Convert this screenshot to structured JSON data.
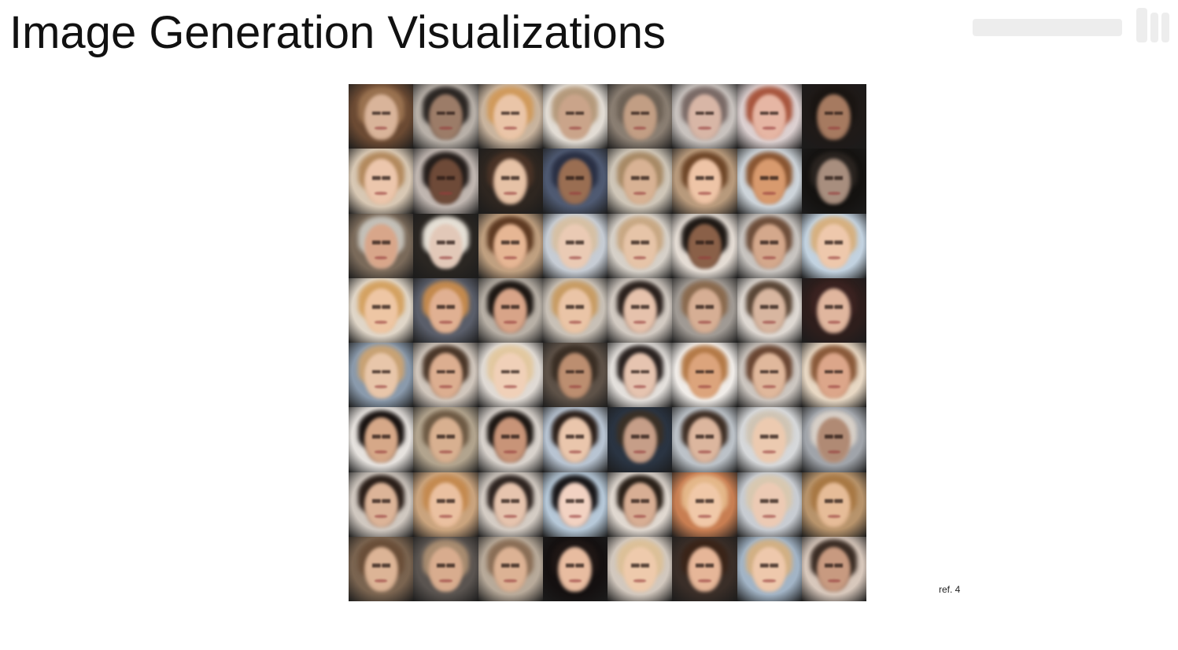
{
  "slide": {
    "title": "Image Generation Visualizations",
    "ref": "ref. 4"
  },
  "grid": {
    "rows": 8,
    "cols": 8,
    "tiles": [
      {
        "bg": "#6b4a33",
        "skin": "#d9b49a",
        "hair": "#9a7250"
      },
      {
        "bg": "#b8b0a8",
        "skin": "#9c7c68",
        "hair": "#2b2623"
      },
      {
        "bg": "#c9b49e",
        "skin": "#eac5a8",
        "hair": "#d09a5c"
      },
      {
        "bg": "#e2dcd4",
        "skin": "#caa48a",
        "hair": "#b59a7c"
      },
      {
        "bg": "#8a7e72",
        "skin": "#c29e84",
        "hair": "#6e6256"
      },
      {
        "bg": "#c8c2be",
        "skin": "#d8b6a6",
        "hair": "#7a6a66"
      },
      {
        "bg": "#dcd0d0",
        "skin": "#e6b6a4",
        "hair": "#a8563e"
      },
      {
        "bg": "#1f1a18",
        "skin": "#a67a60",
        "hair": "#1a1512"
      },
      {
        "bg": "#d8c8b4",
        "skin": "#ecc6ac",
        "hair": "#b38a5e"
      },
      {
        "bg": "#c0b6b0",
        "skin": "#6e4a38",
        "hair": "#241d1a"
      },
      {
        "bg": "#2e2620",
        "skin": "#e6c2a6",
        "hair": "#4a3326"
      },
      {
        "bg": "#4f5a72",
        "skin": "#9a6e52",
        "hair": "#2a3044"
      },
      {
        "bg": "#cfc6b8",
        "skin": "#d8b294",
        "hair": "#a88a66"
      },
      {
        "bg": "#b89a7c",
        "skin": "#eec4a6",
        "hair": "#6e4628"
      },
      {
        "bg": "#cdd4da",
        "skin": "#d89a6e",
        "hair": "#8a5632"
      },
      {
        "bg": "#141210",
        "skin": "#a88e7e",
        "hair": "#2a2420"
      },
      {
        "bg": "#7a6a5a",
        "skin": "#d8a68a",
        "hair": "#c4c0b8"
      },
      {
        "bg": "#2a2622",
        "skin": "#e2c8b8",
        "hair": "#e6e0d6"
      },
      {
        "bg": "#c0a080",
        "skin": "#e6b694",
        "hair": "#5e3a22"
      },
      {
        "bg": "#c6ccd4",
        "skin": "#eacab4",
        "hair": "#d6c0a4"
      },
      {
        "bg": "#d6d0c8",
        "skin": "#e6c4a8",
        "hair": "#c8a884"
      },
      {
        "bg": "#e4dcd4",
        "skin": "#8a6048",
        "hair": "#1e1814"
      },
      {
        "bg": "#c8c4c0",
        "skin": "#d4a88c",
        "hair": "#6e4e3a"
      },
      {
        "bg": "#c2d2e0",
        "skin": "#eec8ac",
        "hair": "#d6b080"
      },
      {
        "bg": "#e0d6c8",
        "skin": "#eec6a4",
        "hair": "#d4a262"
      },
      {
        "bg": "#5a5e6a",
        "skin": "#e0b092",
        "hair": "#c48a4e"
      },
      {
        "bg": "#b8b0a6",
        "skin": "#d8a488",
        "hair": "#1c1612"
      },
      {
        "bg": "#c8c0b6",
        "skin": "#eac4a6",
        "hair": "#c89c64"
      },
      {
        "bg": "#d2cac2",
        "skin": "#e6c2ac",
        "hair": "#2a201c"
      },
      {
        "bg": "#a09a94",
        "skin": "#d6ae94",
        "hair": "#8a6a4e"
      },
      {
        "bg": "#ded8d2",
        "skin": "#d8b6a0",
        "hair": "#5a4636"
      },
      {
        "bg": "#2e1e1c",
        "skin": "#e0b69e",
        "hair": "#3a2220"
      },
      {
        "bg": "#8a9aac",
        "skin": "#e8c6aa",
        "hair": "#c8a274"
      },
      {
        "bg": "#d0c6bc",
        "skin": "#dcae90",
        "hair": "#4a3628"
      },
      {
        "bg": "#e0dad4",
        "skin": "#f0d0b8",
        "hair": "#e2c8a0"
      },
      {
        "bg": "#5e5248",
        "skin": "#bc8e70",
        "hair": "#3a2e24"
      },
      {
        "bg": "#e4e0dc",
        "skin": "#e6c4b0",
        "hair": "#2a2220"
      },
      {
        "bg": "#f0ece8",
        "skin": "#dca47c",
        "hair": "#b47a48"
      },
      {
        "bg": "#ccc6c0",
        "skin": "#e0b89c",
        "hair": "#6a4632"
      },
      {
        "bg": "#e8d8c4",
        "skin": "#dca68a",
        "hair": "#8a5a3a"
      },
      {
        "bg": "#e6e2de",
        "skin": "#d6a888",
        "hair": "#181210"
      },
      {
        "bg": "#b2a48e",
        "skin": "#d8b090",
        "hair": "#6e5a44"
      },
      {
        "bg": "#d8d2cc",
        "skin": "#c89478",
        "hair": "#1c1612"
      },
      {
        "bg": "#b8c4d2",
        "skin": "#eac6ac",
        "hair": "#2a1e18"
      },
      {
        "bg": "#2a3442",
        "skin": "#c69e88",
        "hair": "#3a3026"
      },
      {
        "bg": "#bcc2c8",
        "skin": "#dcb69e",
        "hair": "#3e2e24"
      },
      {
        "bg": "#d6d8da",
        "skin": "#eccab0",
        "hair": "#cfc4b4"
      },
      {
        "bg": "#a0a4aa",
        "skin": "#b08a74",
        "hair": "#d8d0c8"
      },
      {
        "bg": "#d0c8c0",
        "skin": "#dcb498",
        "hair": "#2a1e18"
      },
      {
        "bg": "#caa47e",
        "skin": "#eac0a0",
        "hair": "#c48a50"
      },
      {
        "bg": "#d4ccc4",
        "skin": "#e6c4ae",
        "hair": "#2e2420"
      },
      {
        "bg": "#b6c8d8",
        "skin": "#f2d2c2",
        "hair": "#181618"
      },
      {
        "bg": "#e0d8d0",
        "skin": "#d8ae94",
        "hair": "#2a2018"
      },
      {
        "bg": "#c87e52",
        "skin": "#f0c8a8",
        "hair": "#e4b88a"
      },
      {
        "bg": "#c8ccd2",
        "skin": "#eccab4",
        "hair": "#d8c8b0"
      },
      {
        "bg": "#b8946c",
        "skin": "#e6bc98",
        "hair": "#a87844"
      },
      {
        "bg": "#7a6450",
        "skin": "#dcb496",
        "hair": "#6a4e38"
      },
      {
        "bg": "#5a5450",
        "skin": "#d8ac8e",
        "hair": "#a88c70"
      },
      {
        "bg": "#b8aa9a",
        "skin": "#dcb294",
        "hair": "#8a6e56"
      },
      {
        "bg": "#141010",
        "skin": "#e8bca0",
        "hair": "#1e1614"
      },
      {
        "bg": "#d2c8be",
        "skin": "#eecaac",
        "hair": "#dcc098"
      },
      {
        "bg": "#3a2e28",
        "skin": "#e6b698",
        "hair": "#3a2418"
      },
      {
        "bg": "#a2b4c6",
        "skin": "#eec8ac",
        "hair": "#d2b084"
      },
      {
        "bg": "#d8c8bc",
        "skin": "#c89a80",
        "hair": "#3a2c24"
      }
    ]
  }
}
